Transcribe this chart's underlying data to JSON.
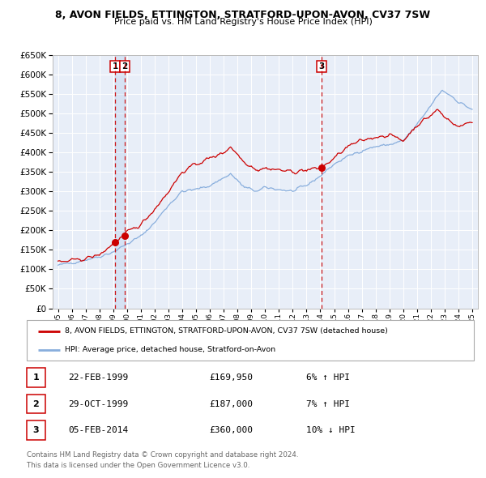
{
  "title": "8, AVON FIELDS, ETTINGTON, STRATFORD-UPON-AVON, CV37 7SW",
  "subtitle": "Price paid vs. HM Land Registry's House Price Index (HPI)",
  "hpi_label": "HPI: Average price, detached house, Stratford-on-Avon",
  "property_label": "8, AVON FIELDS, ETTINGTON, STRATFORD-UPON-AVON, CV37 7SW (detached house)",
  "property_color": "#cc0000",
  "hpi_color": "#88aedd",
  "xlim_start": 1994.6,
  "xlim_end": 2025.4,
  "ylim_min": 0,
  "ylim_max": 650000,
  "ytick_step": 50000,
  "transactions": [
    {
      "num": 1,
      "date_str": "22-FEB-1999",
      "date_x": 1999.13,
      "price": 169950,
      "pct": "6%",
      "dir": "↑"
    },
    {
      "num": 2,
      "date_str": "29-OCT-1999",
      "date_x": 1999.82,
      "price": 187000,
      "pct": "7%",
      "dir": "↑"
    },
    {
      "num": 3,
      "date_str": "05-FEB-2014",
      "date_x": 2014.09,
      "price": 360000,
      "pct": "10%",
      "dir": "↓"
    }
  ],
  "footer_line1": "Contains HM Land Registry data © Crown copyright and database right 2024.",
  "footer_line2": "This data is licensed under the Open Government Licence v3.0.",
  "bg_color": "#ffffff",
  "plot_bg_color": "#e8eef8",
  "grid_color": "#ffffff",
  "transaction_box_color": "#cc0000",
  "legend_border_color": "#aaaaaa"
}
